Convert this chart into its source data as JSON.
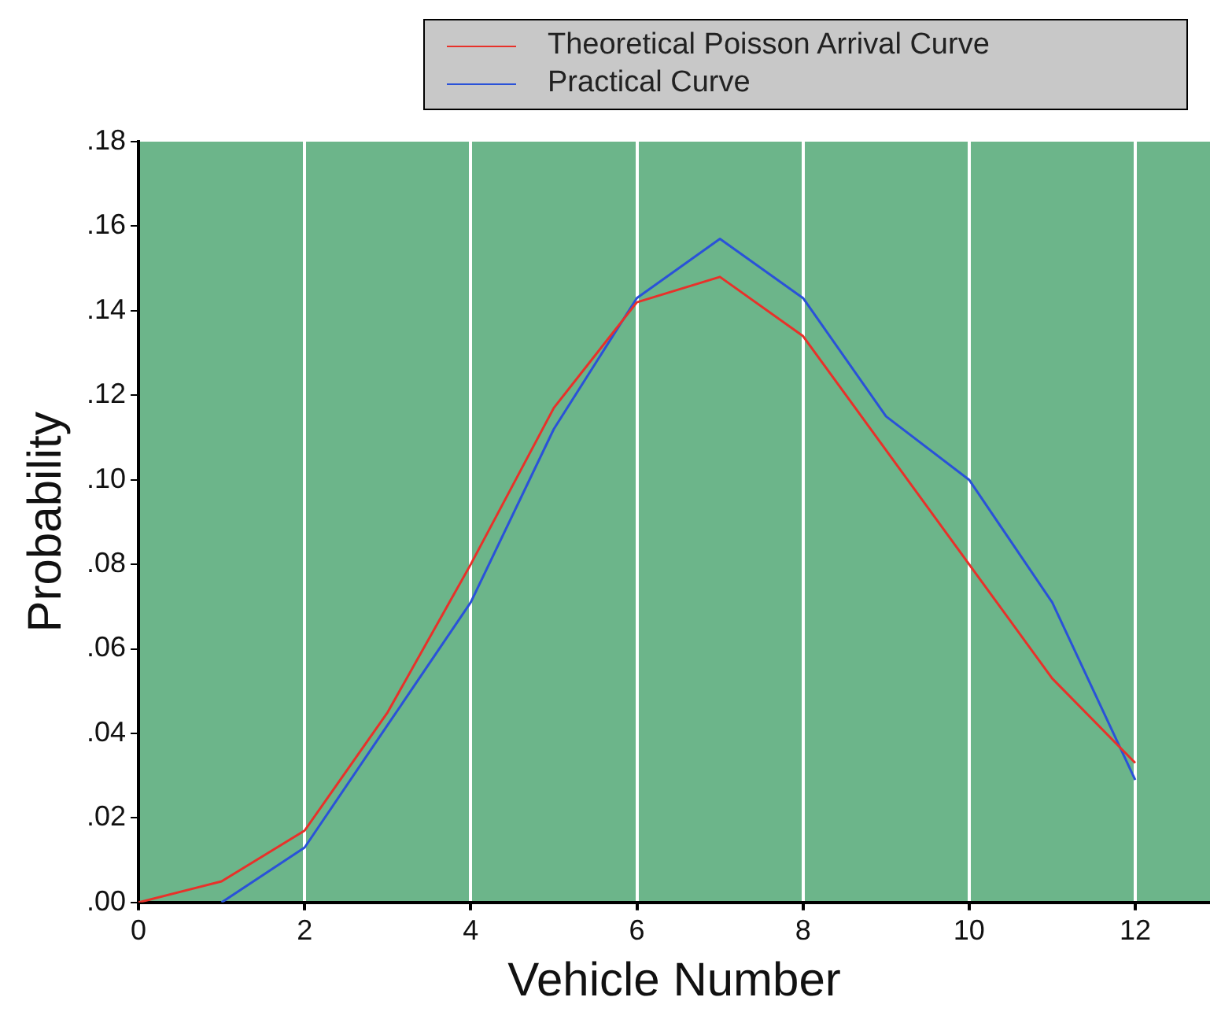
{
  "chart_data": {
    "type": "line",
    "xlabel": "Vehicle Number",
    "ylabel": "Probability",
    "x": [
      0,
      1,
      2,
      3,
      4,
      5,
      6,
      7,
      8,
      9,
      10,
      11,
      12
    ],
    "series": [
      {
        "name": "Theoretical Poisson Arrival Curve",
        "color": "#e8312a",
        "values": [
          0,
          0.005,
          0.017,
          0.045,
          0.08,
          0.117,
          0.142,
          0.148,
          0.134,
          0.107,
          0.08,
          0.053,
          0.033
        ]
      },
      {
        "name": "Practical Curve",
        "color": "#2a52d8",
        "values": [
          null,
          0,
          0.013,
          0.042,
          0.071,
          0.112,
          0.143,
          0.157,
          0.143,
          0.115,
          0.1,
          0.071,
          0.029
        ]
      }
    ],
    "xlim": [
      0,
      12.9
    ],
    "xticks": [
      0,
      2,
      4,
      6,
      8,
      10,
      12
    ],
    "ylim": [
      0,
      0.18
    ],
    "yticks": [
      {
        "value": 0,
        "label": ".00"
      },
      {
        "value": 0.02,
        "label": ".02"
      },
      {
        "value": 0.04,
        "label": ".04"
      },
      {
        "value": 0.06,
        "label": ".06"
      },
      {
        "value": 0.08,
        "label": ".08"
      },
      {
        "value": 0.1,
        "label": ".10"
      },
      {
        "value": 0.12,
        "label": ".12"
      },
      {
        "value": 0.14,
        "label": ".14"
      },
      {
        "value": 0.16,
        "label": ".16"
      },
      {
        "value": 0.18,
        "label": ".18"
      }
    ],
    "grid": "x",
    "legend": "top right",
    "marker": "none",
    "line_style": "solid"
  }
}
